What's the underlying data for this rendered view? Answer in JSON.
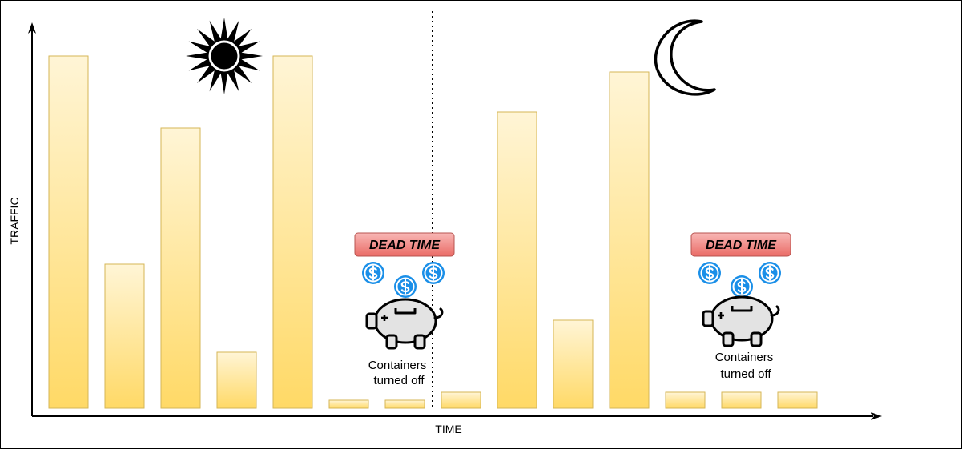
{
  "axes": {
    "x_label": "TIME",
    "y_label": "TRAFFIC"
  },
  "bars": [
    {
      "value": 440
    },
    {
      "value": 180
    },
    {
      "value": 350
    },
    {
      "value": 70
    },
    {
      "value": 440
    },
    {
      "value": 10
    },
    {
      "value": 10
    },
    {
      "value": 20
    },
    {
      "value": 370
    },
    {
      "value": 110
    },
    {
      "value": 420
    },
    {
      "value": 20
    },
    {
      "value": 20
    },
    {
      "value": 20
    }
  ],
  "annotations": [
    {
      "badge": "DEAD TIME",
      "caption_line1": "Containers",
      "caption_line2": "turned off"
    },
    {
      "badge": "DEAD TIME",
      "caption_line1": "Containers",
      "caption_line2": "turned off"
    }
  ],
  "icons": {
    "day": "sun-icon",
    "night": "moon-icon",
    "savings": "piggy-bank-icon",
    "coin": "dollar-coin-icon"
  },
  "colors": {
    "bar_top": "#fff5d6",
    "bar_bottom": "#ffd966",
    "bar_stroke": "#d6b656",
    "badge_fill": "#f08080",
    "badge_stroke": "#b85450",
    "coin": "#1a8fe8",
    "piggy": "#e3e3e3"
  }
}
